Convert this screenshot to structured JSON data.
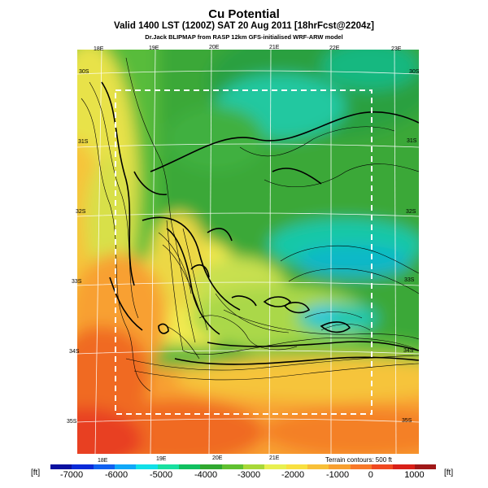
{
  "header": {
    "title": "Cu Potential",
    "subtitle": "Valid 1400 LST (1200Z) SAT 20 Aug 2011 [18hrFcst@2204z]",
    "credit": "Dr.Jack BLIPMAP from RASP 12km GFS-initialised WRF-ARW model"
  },
  "map": {
    "lon_labels_top": [
      "18E",
      "19E",
      "20E",
      "21E",
      "22E",
      "23E"
    ],
    "lon_labels_bottom": [
      "18E",
      "19E",
      "20E",
      "21E"
    ],
    "lat_labels_right": [
      "30S",
      "31S",
      "32S",
      "33S",
      "34S",
      "35S"
    ],
    "lat_labels_left": [
      "30S",
      "31S",
      "32S",
      "33S",
      "34S",
      "35S"
    ],
    "terrain_note": "Terrain contours: 500 ft"
  },
  "colorbar": {
    "unit_left": "[ft]",
    "unit_right": "[ft]",
    "ticks": [
      "-7000",
      "-6000",
      "-5000",
      "-4000",
      "-3000",
      "-2000",
      "-1000",
      "0",
      "1000"
    ],
    "colors": [
      "#0a10a0",
      "#0a2ad8",
      "#1060f0",
      "#10a8f8",
      "#10e0e8",
      "#18e0a0",
      "#10c060",
      "#30a830",
      "#60c030",
      "#a8d838",
      "#e8f050",
      "#f8e040",
      "#f8c038",
      "#f8a030",
      "#f87828",
      "#f04820",
      "#d82018",
      "#a01818"
    ]
  }
}
